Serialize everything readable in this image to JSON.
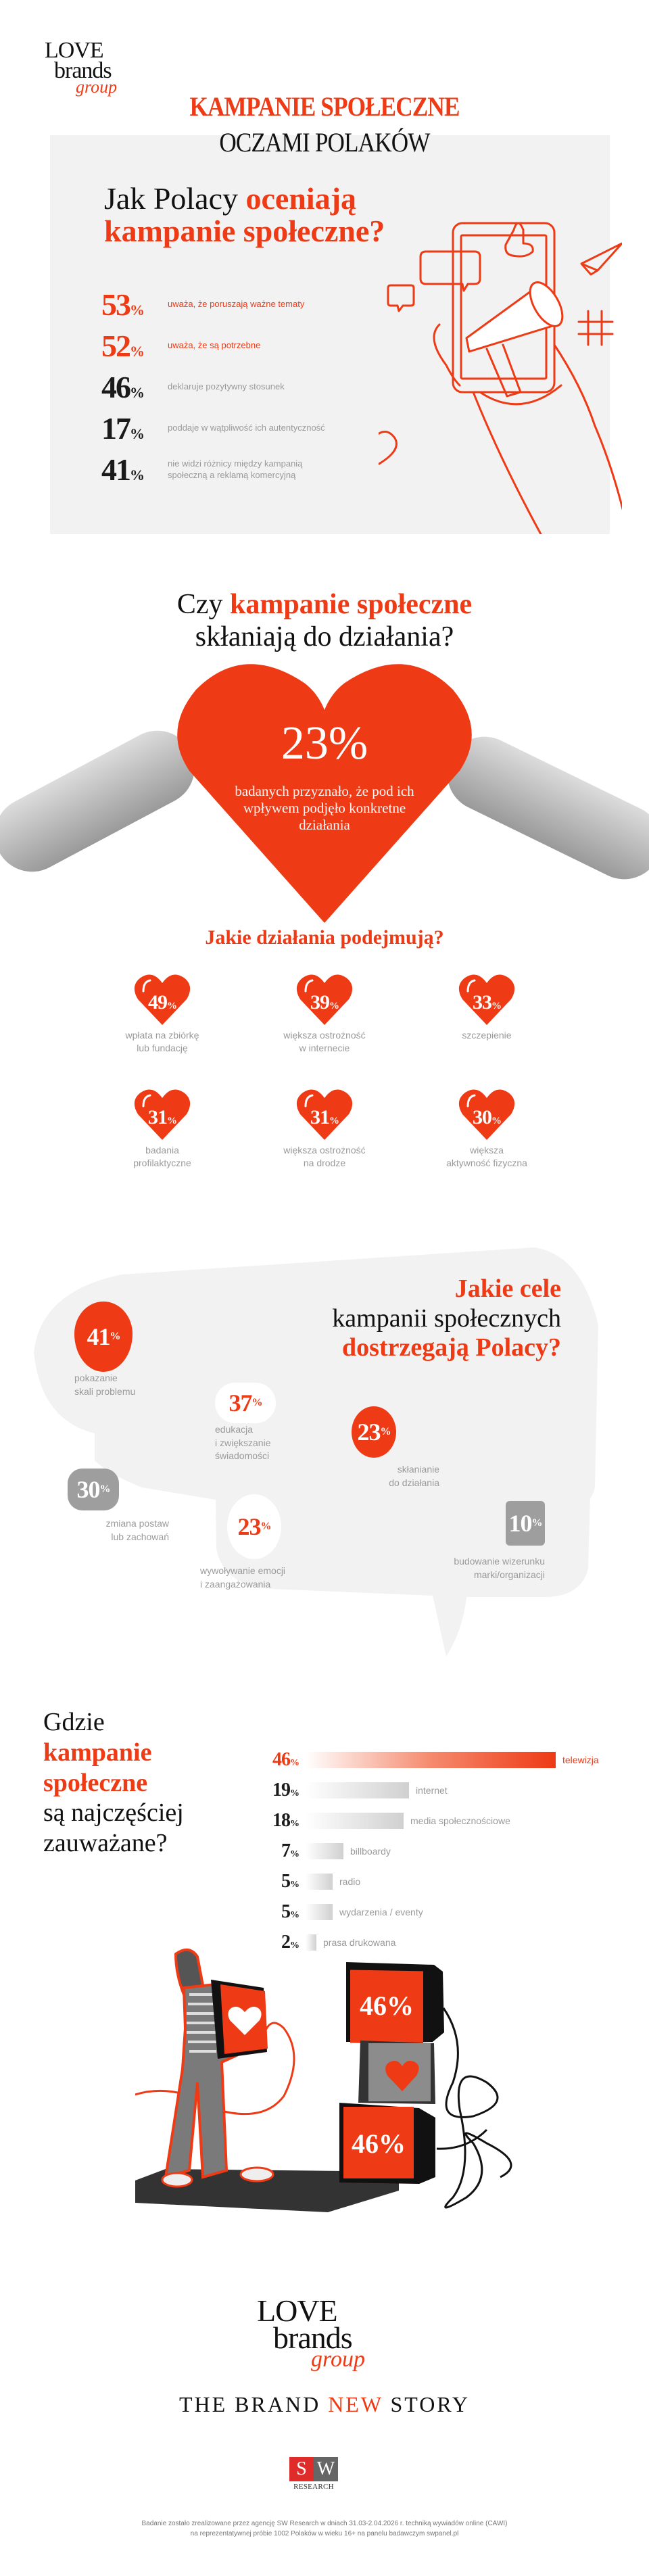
{
  "brand": {
    "logo_line1": "LOVE",
    "logo_line2": "brands",
    "logo_line3": "group",
    "tagline_pre": "THE BRAND ",
    "tagline_accent": "NEW",
    "tagline_post": " STORY",
    "accent_color": "#ee3a15"
  },
  "header": {
    "title_line1": "KAMPANIE SPOŁECZNE",
    "title_line2": "OCZAMI POLAKÓW"
  },
  "section1": {
    "title_plain": "Jak Polacy ",
    "title_accent_1": "oceniają",
    "title_accent_2": "kampanie społeczne?",
    "stats": [
      {
        "value": "53",
        "unit": "%",
        "text": "uważa, że poruszają ważne tematy",
        "style": "hl"
      },
      {
        "value": "52",
        "unit": "%",
        "text": "uważa, że są potrzebne",
        "style": "hl"
      },
      {
        "value": "46",
        "unit": "%",
        "text": "deklaruje pozytywny stosunek",
        "style": "dim"
      },
      {
        "value": "17",
        "unit": "%",
        "text": "poddaje w wątpliwość ich autentyczność",
        "style": "dim"
      },
      {
        "value": "41",
        "unit": "%",
        "text": "nie widzi różnicy między kampanią społeczną a reklamą komercyjną",
        "style": "dim"
      }
    ],
    "illustration": "hand-holding-phone-with-megaphone-icon"
  },
  "section2": {
    "title_plain_1": "Czy ",
    "title_accent": "kampanie społeczne",
    "title_plain_2": "skłaniają do działania?",
    "heart_value": "23%",
    "heart_text": "badanych przyznało, że pod ich wpływem podjęło konkretne działania",
    "subtitle": "Jakie działania podejmują?",
    "actions": [
      {
        "value": "49",
        "unit": "%",
        "label_1": "wpłata na zbiórkę",
        "label_2": "lub fundację"
      },
      {
        "value": "39",
        "unit": "%",
        "label_1": "większa ostrożność",
        "label_2": "w internecie"
      },
      {
        "value": "33",
        "unit": "%",
        "label_1": "szczepienie",
        "label_2": ""
      },
      {
        "value": "31",
        "unit": "%",
        "label_1": "badania",
        "label_2": "profilaktyczne"
      },
      {
        "value": "31",
        "unit": "%",
        "label_1": "większa ostrożność",
        "label_2": "na drodze"
      },
      {
        "value": "30",
        "unit": "%",
        "label_1": "większa",
        "label_2": "aktywność fizyczna"
      }
    ]
  },
  "section3": {
    "title_accent_1": "Jakie cele",
    "title_plain": "kampanii społecznych",
    "title_accent_2": "dostrzegają Polacy?",
    "goals": [
      {
        "value": "41",
        "unit": "%",
        "label_1": "pokazanie",
        "label_2": "skali problemu",
        "label_3": "",
        "bubble": "red-round"
      },
      {
        "value": "37",
        "unit": "%",
        "label_1": "edukacja",
        "label_2": "i zwiększanie",
        "label_3": "świadomości",
        "bubble": "white-cloud"
      },
      {
        "value": "23",
        "unit": "%",
        "label_1": "skłanianie",
        "label_2": "do działania",
        "label_3": "",
        "bubble": "red-round"
      },
      {
        "value": "30",
        "unit": "%",
        "label_1": "zmiana postaw",
        "label_2": "lub zachowań",
        "label_3": "",
        "bubble": "grey-rounded"
      },
      {
        "value": "23",
        "unit": "%",
        "label_1": "wywoływanie emocji",
        "label_2": "i zaangażowania",
        "label_3": "",
        "bubble": "white-oval"
      },
      {
        "value": "10",
        "unit": "%",
        "label_1": "budowanie wizerunku",
        "label_2": "marki/organizacji",
        "label_3": "",
        "bubble": "grey-square"
      }
    ]
  },
  "section4": {
    "title_line1": "Gdzie",
    "title_accent_1": "kampanie",
    "title_accent_2": "społeczne",
    "title_line4": "są najczęściej",
    "title_line5": "zauważane?",
    "tv_values": [
      "46%",
      "46%"
    ],
    "illustration": "man-carrying-tv-with-heart-and-stacked-tvs"
  },
  "chart_data": {
    "type": "bar",
    "title": "Gdzie kampanie społeczne są najczęściej zauważane?",
    "orientation": "horizontal",
    "categories": [
      "telewizja",
      "internet",
      "media społecznościowe",
      "billboardy",
      "radio",
      "wydarzenia / eventy",
      "prasa drukowana"
    ],
    "values": [
      46,
      19,
      18,
      7,
      5,
      5,
      2
    ],
    "unit": "%",
    "xlabel": "",
    "ylabel": "",
    "xlim": [
      0,
      46
    ],
    "grid": false,
    "legend": "none",
    "highlight_category": "telewizja",
    "highlight_color": "#ee3a15",
    "base_color": "#d0d0d0"
  },
  "footer": {
    "sw_s": "S",
    "sw_w": "W",
    "sw_research": "RESEARCH",
    "note_line1": "Badanie zostało zrealizowane przez agencję SW Research w dniach 31.03-2.04.2026 r. techniką wywiadów online (CAWI)",
    "note_line2": "na reprezentatywnej próbie 1002 Polaków w wieku 16+ na panelu badawczym swpanel.pl"
  }
}
